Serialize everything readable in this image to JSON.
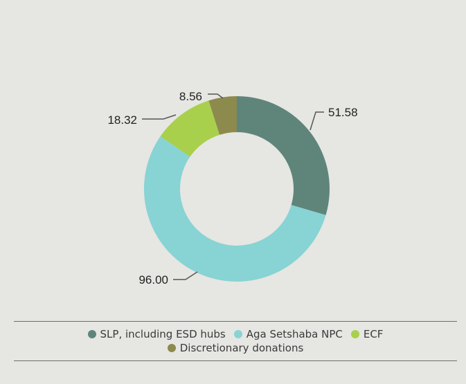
{
  "chart_data": {
    "type": "pie",
    "donut": true,
    "title": "",
    "categories": [
      "SLP, including ESD hubs",
      "Aga Setshaba NPC",
      "ECF",
      "Discretionary donations"
    ],
    "values": [
      51.58,
      96.0,
      18.32,
      8.56
    ],
    "labels": [
      "51.58",
      "96.00",
      "18.32",
      "8.56"
    ],
    "colors": [
      "#5f857b",
      "#88d3d3",
      "#a8d04c",
      "#8c8a4d"
    ],
    "legend_placement": "bottom",
    "start_angle_deg": 0,
    "direction": "clockwise"
  },
  "style": {
    "background": "#e6e6e3",
    "leader_color": "#555555",
    "label_color": "#1f1f1f"
  }
}
